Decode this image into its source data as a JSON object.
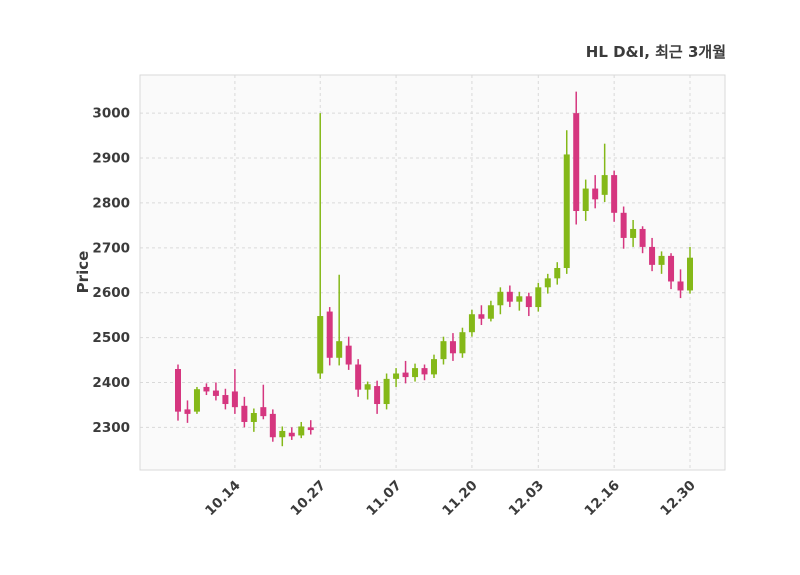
{
  "title": "HL D&I, 최근 3개월",
  "chart_data": {
    "type": "candlestick",
    "title": "HL D&I, 최근 3개월",
    "xlabel": "",
    "ylabel": "Price",
    "grid": true,
    "legend": "none",
    "y_ticks": [
      2300,
      2400,
      2500,
      2600,
      2700,
      2800,
      2900,
      3000
    ],
    "ylim": [
      2205,
      3085
    ],
    "x_ticks": [
      {
        "label": "10.14",
        "index": 6
      },
      {
        "label": "10.27",
        "index": 15
      },
      {
        "label": "11.07",
        "index": 23
      },
      {
        "label": "11.20",
        "index": 31
      },
      {
        "label": "12.03",
        "index": 38
      },
      {
        "label": "12.16",
        "index": 46
      },
      {
        "label": "12.30",
        "index": 54
      }
    ],
    "ohlc_note": "each candle is [open, high, low, close], values in KRW",
    "candles": [
      [
        2430,
        2440,
        2315,
        2335
      ],
      [
        2340,
        2360,
        2310,
        2330
      ],
      [
        2335,
        2390,
        2330,
        2385
      ],
      [
        2390,
        2398,
        2372,
        2380
      ],
      [
        2382,
        2400,
        2360,
        2370
      ],
      [
        2372,
        2386,
        2340,
        2352
      ],
      [
        2380,
        2430,
        2330,
        2345
      ],
      [
        2348,
        2368,
        2300,
        2312
      ],
      [
        2312,
        2342,
        2290,
        2332
      ],
      [
        2345,
        2395,
        2318,
        2325
      ],
      [
        2330,
        2340,
        2268,
        2278
      ],
      [
        2278,
        2302,
        2258,
        2292
      ],
      [
        2288,
        2300,
        2272,
        2280
      ],
      [
        2282,
        2312,
        2276,
        2302
      ],
      [
        2300,
        2316,
        2284,
        2294
      ],
      [
        2420,
        3000,
        2408,
        2548
      ],
      [
        2558,
        2568,
        2438,
        2455
      ],
      [
        2455,
        2640,
        2438,
        2492
      ],
      [
        2482,
        2502,
        2428,
        2440
      ],
      [
        2440,
        2452,
        2368,
        2384
      ],
      [
        2384,
        2402,
        2362,
        2396
      ],
      [
        2392,
        2404,
        2330,
        2352
      ],
      [
        2352,
        2420,
        2340,
        2408
      ],
      [
        2408,
        2432,
        2390,
        2420
      ],
      [
        2422,
        2448,
        2398,
        2412
      ],
      [
        2412,
        2442,
        2402,
        2432
      ],
      [
        2432,
        2440,
        2405,
        2418
      ],
      [
        2418,
        2462,
        2410,
        2452
      ],
      [
        2452,
        2502,
        2440,
        2492
      ],
      [
        2492,
        2510,
        2448,
        2465
      ],
      [
        2465,
        2522,
        2455,
        2512
      ],
      [
        2512,
        2562,
        2502,
        2552
      ],
      [
        2552,
        2572,
        2528,
        2542
      ],
      [
        2542,
        2582,
        2536,
        2572
      ],
      [
        2572,
        2612,
        2552,
        2602
      ],
      [
        2602,
        2616,
        2568,
        2580
      ],
      [
        2580,
        2602,
        2560,
        2592
      ],
      [
        2592,
        2600,
        2548,
        2568
      ],
      [
        2568,
        2622,
        2558,
        2612
      ],
      [
        2612,
        2642,
        2598,
        2632
      ],
      [
        2632,
        2668,
        2618,
        2655
      ],
      [
        2655,
        2962,
        2642,
        2908
      ],
      [
        3000,
        3048,
        2752,
        2782
      ],
      [
        2782,
        2852,
        2760,
        2832
      ],
      [
        2832,
        2862,
        2788,
        2808
      ],
      [
        2818,
        2932,
        2802,
        2862
      ],
      [
        2862,
        2872,
        2758,
        2778
      ],
      [
        2778,
        2792,
        2698,
        2722
      ],
      [
        2722,
        2762,
        2702,
        2742
      ],
      [
        2742,
        2748,
        2688,
        2702
      ],
      [
        2702,
        2722,
        2648,
        2662
      ],
      [
        2662,
        2692,
        2642,
        2682
      ],
      [
        2682,
        2688,
        2608,
        2625
      ],
      [
        2625,
        2652,
        2588,
        2605
      ],
      [
        2605,
        2702,
        2598,
        2678
      ]
    ],
    "colors": {
      "up": "#84b818",
      "down": "#d5367f",
      "grid": "#d9d9d9",
      "plot_border": "#d9d9d9",
      "plot_bg": "#fafafa",
      "text": "#3b3b3b",
      "background": "#ffffff"
    }
  }
}
